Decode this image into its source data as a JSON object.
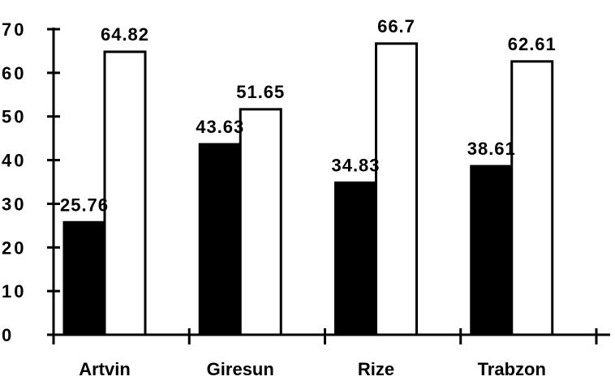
{
  "chart_data": {
    "type": "bar",
    "categories": [
      "Artvin",
      "Giresun",
      "Rize",
      "Trabzon"
    ],
    "series": [
      {
        "values": [
          25.76,
          43.63,
          34.83,
          38.61
        ],
        "fill": "#000000",
        "labels": [
          "25.76",
          "43.63",
          "34.83",
          "38.61"
        ]
      },
      {
        "values": [
          64.82,
          51.65,
          66.7,
          62.61
        ],
        "fill": "#ffffff",
        "labels": [
          "64.82",
          "51.65",
          "66.7",
          "62.61"
        ]
      }
    ],
    "yticks": [
      "0",
      "10",
      "20",
      "30",
      "40",
      "50",
      "60",
      "70"
    ],
    "ylim": [
      0,
      70
    ],
    "grid": false,
    "colors": {
      "axis": "#000000",
      "background": "#ffffff"
    }
  }
}
